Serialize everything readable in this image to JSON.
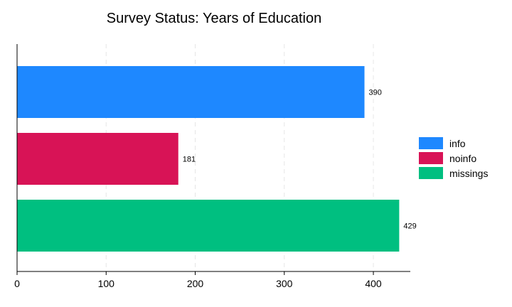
{
  "chart_data": {
    "type": "bar",
    "orientation": "horizontal",
    "title": "Survey Status: Years of Education",
    "xlabel": "",
    "ylabel": "",
    "categories": [
      "info",
      "noinfo",
      "missings"
    ],
    "values": [
      390,
      181,
      429
    ],
    "colors": [
      "#1e88ff",
      "#d81356",
      "#00bf80"
    ],
    "xlim": [
      0,
      440
    ],
    "xticks": [
      0,
      100,
      200,
      300,
      400
    ],
    "grid": "vertical dashed",
    "legend": "right",
    "legend_entries": [
      "info",
      "noinfo",
      "missings"
    ],
    "data_labels": [
      "390",
      "181",
      "429"
    ]
  }
}
